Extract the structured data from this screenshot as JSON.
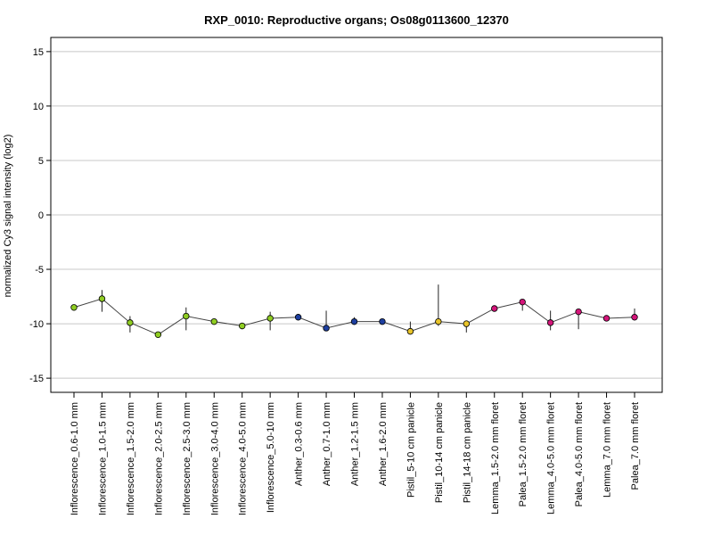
{
  "chart_data": {
    "type": "line",
    "title": "RXP_0010: Reproductive organs; Os08g0113600_12370",
    "ylabel": "normalized Cy3 signal intensity (log2)",
    "xlabel": "",
    "ylim": [
      -16.3,
      16.3
    ],
    "yticks": [
      15,
      10,
      5,
      0,
      -5,
      -10,
      -15
    ],
    "grid": true,
    "categories": [
      "Inflorescence_0.6-1.0 mm",
      "Inflorescence_1.0-1.5 mm",
      "Inflorescence_1.5-2.0 mm",
      "Inflorescence_2.0-2.5 mm",
      "Inflorescence_2.5-3.0 mm",
      "Inflorescence_3.0-4.0 mm",
      "Inflorescence_4.0-5.0 mm",
      "Inflorescence_5.0-10 mm",
      "Anther_0.3-0.6 mm",
      "Anther_0.7-1.0 mm",
      "Anther_1.2-1.5 mm",
      "Anther_1.6-2.0 mm",
      "Pistil_5-10 cm panicle",
      "Pistil_10-14 cm panicle",
      "Pistil_14-18 cm panicle",
      "Lemma_1.5-2.0 mm floret",
      "Palea_1.5-2.0 mm floret",
      "Lemma_4.0-5.0 mm floret",
      "Palea_4.0-5.0 mm floret",
      "Lemma_7.0 mm floret",
      "Palea_7.0 mm floret"
    ],
    "values": [
      -8.5,
      -7.7,
      -9.9,
      -11.0,
      -9.3,
      -9.8,
      -10.2,
      -9.5,
      -9.4,
      -10.4,
      -9.8,
      -9.8,
      -10.7,
      -9.8,
      -10.0,
      -8.6,
      -8.0,
      -9.9,
      -8.9,
      -9.5,
      -9.4
    ],
    "error_low": [
      -8.5,
      -8.9,
      -10.8,
      -11.0,
      -10.6,
      -9.8,
      -10.5,
      -10.6,
      -9.6,
      -10.6,
      -10.1,
      -9.9,
      -10.8,
      -10.2,
      -10.8,
      -8.8,
      -8.8,
      -10.6,
      -10.5,
      -9.6,
      -9.4
    ],
    "error_high": [
      -8.3,
      -6.9,
      -9.3,
      -10.9,
      -8.5,
      -9.7,
      -9.9,
      -8.9,
      -9.1,
      -8.8,
      -9.4,
      -9.6,
      -9.8,
      -6.4,
      -9.8,
      -8.4,
      -7.8,
      -8.8,
      -8.6,
      -9.4,
      -8.6
    ],
    "point_colors": [
      "#8fcd22",
      "#8fcd22",
      "#8fcd22",
      "#8fcd22",
      "#8fcd22",
      "#8fcd22",
      "#8fcd22",
      "#8fcd22",
      "#1e3fa0",
      "#1e3fa0",
      "#1e3fa0",
      "#1e3fa0",
      "#e8c42a",
      "#e8c42a",
      "#e8c42a",
      "#d4157a",
      "#d4157a",
      "#d4157a",
      "#d4157a",
      "#d4157a",
      "#d4157a"
    ],
    "line_color": "#444444",
    "grid_color": "#c8c8c8"
  }
}
